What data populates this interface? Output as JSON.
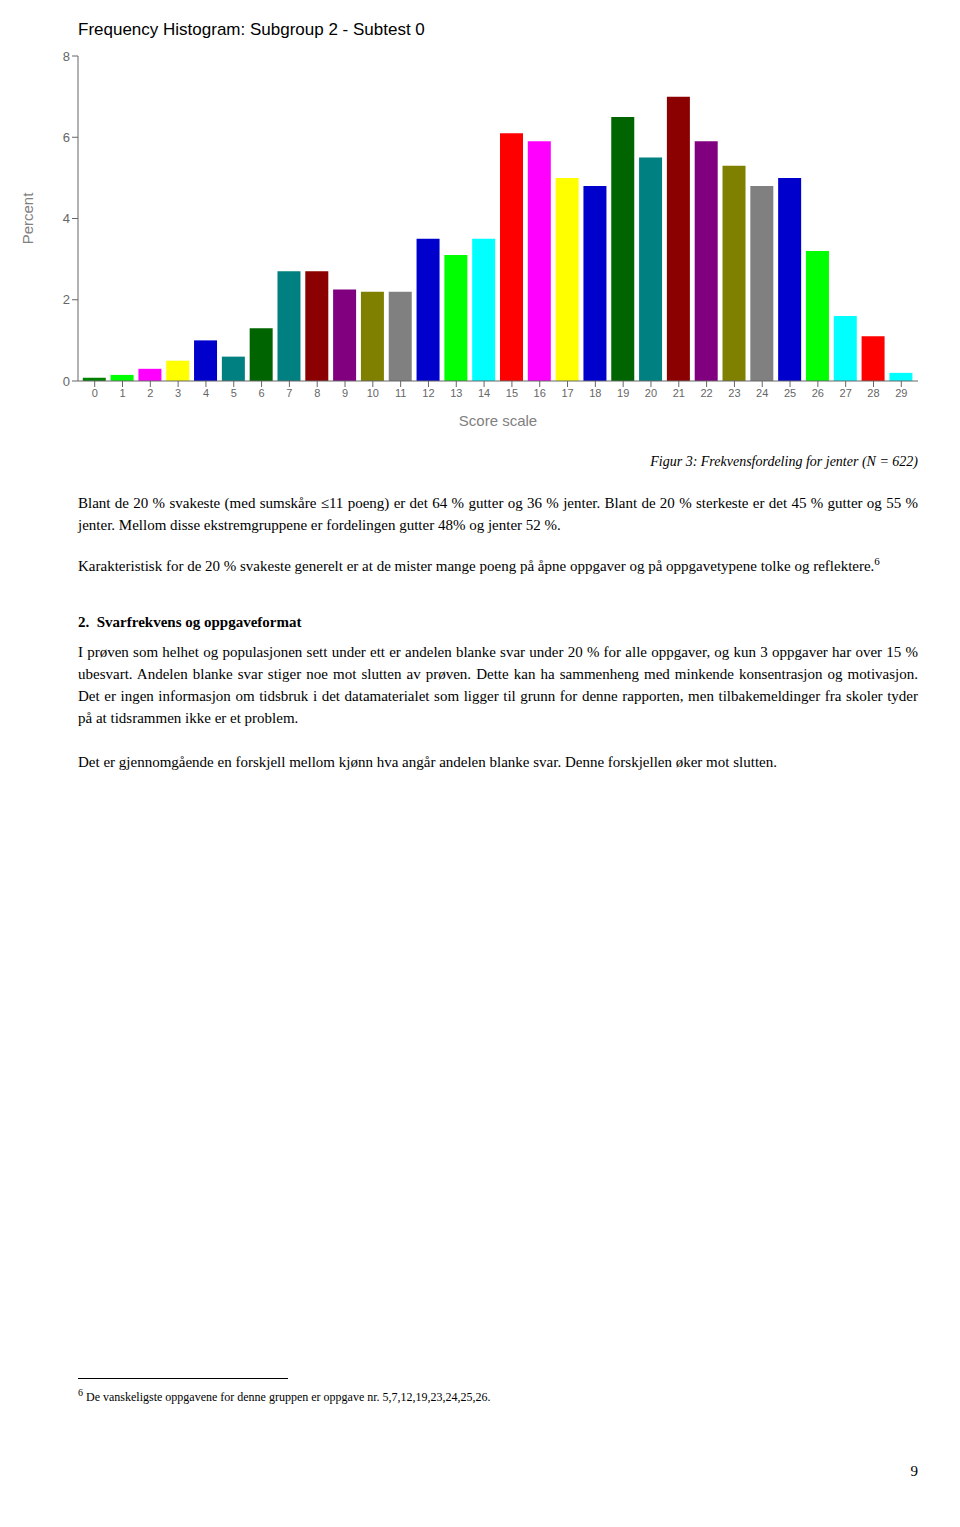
{
  "chart_data": {
    "type": "bar",
    "title": "Frequency Histogram:  Subgroup 2 - Subtest 0",
    "xlabel": "Score scale",
    "ylabel": "Percent",
    "x": [
      0,
      1,
      2,
      3,
      4,
      5,
      6,
      7,
      8,
      9,
      10,
      11,
      12,
      13,
      14,
      15,
      16,
      17,
      18,
      19,
      20,
      21,
      22,
      23,
      24,
      25,
      26,
      27,
      28,
      29
    ],
    "values": [
      0.08,
      0.15,
      0.3,
      0.5,
      1.0,
      0.6,
      1.3,
      2.7,
      2.7,
      2.25,
      2.2,
      2.2,
      3.5,
      3.1,
      3.5,
      6.1,
      5.9,
      5.0,
      4.8,
      6.5,
      5.5,
      7.0,
      5.9,
      5.3,
      4.8,
      5.0,
      3.2,
      1.6,
      1.1,
      0.2
    ],
    "colors": [
      "#008000",
      "#00FF00",
      "#FF00FF",
      "#FFFF00",
      "#0000CD",
      "#008080",
      "#006400",
      "#008080",
      "#8B0000",
      "#800080",
      "#808000",
      "#808080",
      "#0000CD",
      "#00FF00",
      "#00FFFF",
      "#FF0000",
      "#FF00FF",
      "#FFFF00",
      "#0000CD",
      "#006400",
      "#008080",
      "#8B0000",
      "#800080",
      "#808000",
      "#808080",
      "#0000CD",
      "#00FF00",
      "#00FFFF",
      "#FF0000",
      "#00FFFF"
    ],
    "xlim": [
      -0.6,
      29.6
    ],
    "xticks": [
      0,
      1,
      2,
      3,
      4,
      5,
      6,
      7,
      8,
      9,
      10,
      11,
      12,
      13,
      14,
      15,
      16,
      17,
      18,
      19,
      20,
      21,
      22,
      23,
      24,
      25,
      26,
      27,
      28,
      29
    ],
    "ylim": [
      0,
      8
    ],
    "yticks": [
      0,
      2,
      4,
      6,
      8
    ],
    "grid": false,
    "annotations": [
      "Figur 3: Frekvensfordeling for jenter (N = 622)",
      "Blant de 20 % svakeste (med sumskåre ≤11 poeng) er det 64 % gutter og 36 % jenter. Blant de 20 % sterkeste er det 45 % gutter og 55 % jenter. Mellom disse ekstremgruppene er fordelingen gutter 48% og jenter 52 %.",
      "Karakteristisk for de 20 % svakeste generelt er at de mister mange poeng på åpne oppgaver og på oppgavetypene tolke og reflektere.",
      "6",
      "2. Svarfrekvens og oppgaveformat",
      "I prøven som helhet og populasjonen sett under ett er andelen blanke svar under 20 % for alle oppgaver, og kun 3 oppgaver har over 15 % ubesvart. Andelen blanke svar stiger noe mot slutten av prøven. Dette kan ha sammenheng med minkende konsentrasjon og motivasjon. Det er ingen informasjon om tidsbruk i det datamaterialet som ligger til grunn for denne rapporten, men tilbakemeldinger fra skoler tyder på at tidsrammen ikke er et problem.",
      "Det er gjennomgående en forskjell mellom kjønn hva angår andelen blanke svar. Denne forskjellen øker mot slutten.",
      "6",
      "De vanskeligste oppgavene for denne gruppen er oppgave nr. 5,7,12,19,23,24,25,26.",
      "9"
    ]
  }
}
